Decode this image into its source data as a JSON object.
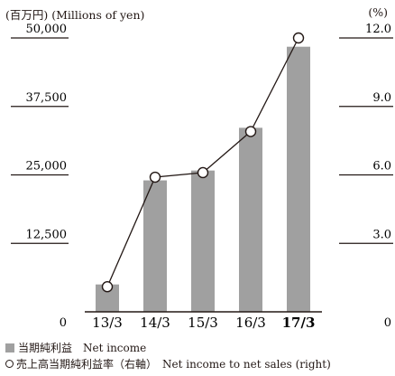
{
  "chart_data": {
    "type": "bar",
    "units": {
      "left": "(百万円) (Millions of yen)",
      "right": "(%)"
    },
    "categories": [
      "13/3",
      "14/3",
      "15/3",
      "16/3",
      "17/3"
    ],
    "highlight_category": "17/3",
    "left_axis": {
      "ylim": [
        0,
        50000
      ],
      "ticks": [
        "0",
        "12,500",
        "25,000",
        "37,500",
        "50,000"
      ],
      "tick_values": [
        0,
        12500,
        25000,
        37500,
        50000
      ]
    },
    "right_axis": {
      "ylim": [
        0,
        12.0
      ],
      "ticks": [
        "0",
        "3.0",
        "6.0",
        "9.0",
        "12.0"
      ],
      "tick_values": [
        0,
        3.0,
        6.0,
        9.0,
        12.0
      ]
    },
    "series": [
      {
        "name": "当期純利益　Net income",
        "type": "bar",
        "axis": "left",
        "color": "#a0a0a0",
        "values": [
          5000,
          24000,
          25800,
          33600,
          48400
        ]
      },
      {
        "name": "売上高当期純利益率（右軸）　Net income to net sales (right)",
        "type": "line",
        "axis": "right",
        "color": "#231815",
        "values": [
          1.1,
          5.9,
          6.1,
          7.9,
          12.0
        ]
      }
    ],
    "legend_position": "bottom-left",
    "grid": false
  }
}
